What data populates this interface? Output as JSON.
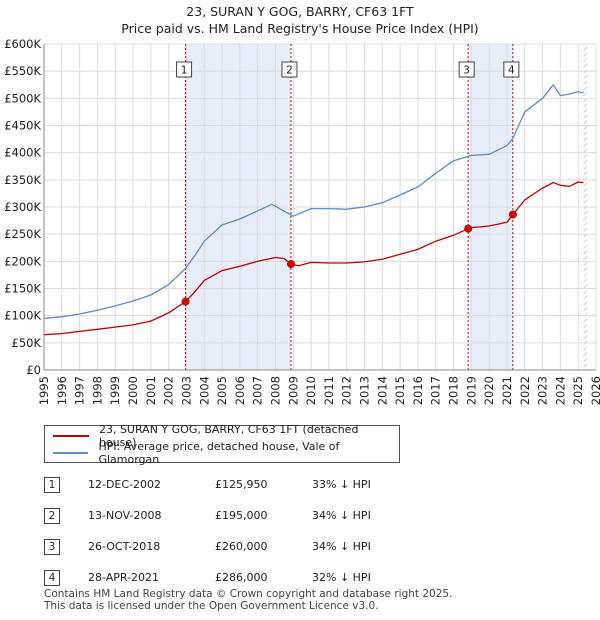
{
  "title": "23, SURAN Y GOG, BARRY, CF63 1FT",
  "subtitle": "Price paid vs. HM Land Registry's House Price Index (HPI)",
  "colors": {
    "property": "#c00000",
    "hpi": "#5b8ccc",
    "shade": "#e8eef9",
    "marker": "#cc0000"
  },
  "legend": {
    "property_label": "23, SURAN Y GOG, BARRY, CF63 1FT (detached house)",
    "hpi_label": "HPI: Average price, detached house, Vale of Glamorgan"
  },
  "sales": [
    {
      "num": "1",
      "date": "12-DEC-2002",
      "price": "£125,950",
      "hpi": "33% ↓ HPI"
    },
    {
      "num": "2",
      "date": "13-NOV-2008",
      "price": "£195,000",
      "hpi": "34% ↓ HPI"
    },
    {
      "num": "3",
      "date": "26-OCT-2018",
      "price": "£260,000",
      "hpi": "34% ↓ HPI"
    },
    {
      "num": "4",
      "date": "28-APR-2021",
      "price": "£286,000",
      "hpi": "32% ↓ HPI"
    }
  ],
  "footer": {
    "line1": "Contains HM Land Registry data © Crown copyright and database right 2025.",
    "line2": "This data is licensed under the Open Government Licence v3.0."
  },
  "chart_data": {
    "type": "line",
    "title": "23, SURAN Y GOG, BARRY, CF63 1FT",
    "subtitle": "Price paid vs. HM Land Registry's House Price Index (HPI)",
    "xlabel": "",
    "ylabel": "",
    "xlim": [
      1995,
      2026
    ],
    "ylim": [
      0,
      600000
    ],
    "y_ticks": [
      0,
      50000,
      100000,
      150000,
      200000,
      250000,
      300000,
      350000,
      400000,
      450000,
      500000,
      550000,
      600000
    ],
    "y_tick_labels": [
      "£0",
      "£50K",
      "£100K",
      "£150K",
      "£200K",
      "£250K",
      "£300K",
      "£350K",
      "£400K",
      "£450K",
      "£500K",
      "£550K",
      "£600K"
    ],
    "x_ticks": [
      1995,
      1996,
      1997,
      1998,
      1999,
      2000,
      2001,
      2002,
      2003,
      2004,
      2005,
      2006,
      2007,
      2008,
      2009,
      2010,
      2011,
      2012,
      2013,
      2014,
      2015,
      2016,
      2017,
      2018,
      2019,
      2020,
      2021,
      2022,
      2023,
      2024,
      2025,
      2026
    ],
    "grid": true,
    "shaded_ranges": [
      [
        2002.95,
        2008.87
      ],
      [
        2018.82,
        2021.33
      ]
    ],
    "data_end": 2025.3,
    "sale_markers": [
      {
        "label": "1",
        "x": 2002.95,
        "y": 125950
      },
      {
        "label": "2",
        "x": 2008.87,
        "y": 195000
      },
      {
        "label": "3",
        "x": 2018.82,
        "y": 260000
      },
      {
        "label": "4",
        "x": 2021.33,
        "y": 286000
      }
    ],
    "series": [
      {
        "name": "23, SURAN Y GOG, BARRY, CF63 1FT (detached house)",
        "x": [
          1995,
          1996,
          1997,
          1998,
          1999,
          2000,
          2001,
          2002,
          2002.95,
          2003.5,
          2004,
          2005,
          2006,
          2007,
          2008,
          2008.5,
          2008.87,
          2009.3,
          2010,
          2011,
          2012,
          2013,
          2014,
          2015,
          2016,
          2017,
          2018,
          2018.82,
          2019,
          2020,
          2021,
          2021.33,
          2022,
          2023,
          2023.6,
          2024,
          2024.5,
          2025,
          2025.3
        ],
        "y": [
          65000,
          67000,
          71000,
          75000,
          79000,
          83000,
          90000,
          105000,
          125950,
          145000,
          165000,
          183000,
          191000,
          200000,
          207000,
          205000,
          195000,
          192000,
          198000,
          197000,
          197000,
          199000,
          204000,
          213000,
          222000,
          237000,
          248000,
          260000,
          262000,
          265000,
          272000,
          286000,
          313000,
          335000,
          345000,
          340000,
          338000,
          346000,
          345000
        ]
      },
      {
        "name": "HPI: Average price, detached house, Vale of Glamorgan",
        "x": [
          1995,
          1996,
          1997,
          1998,
          1999,
          2000,
          2001,
          2002,
          2002.95,
          2003.5,
          2004,
          2005,
          2006,
          2007,
          2007.8,
          2008.5,
          2009,
          2010,
          2011,
          2012,
          2013,
          2014,
          2015,
          2016,
          2017,
          2018,
          2019,
          2020,
          2021,
          2021.33,
          2022,
          2023,
          2023.6,
          2024,
          2024.5,
          2025,
          2025.3
        ],
        "y": [
          95000,
          98000,
          103000,
          110000,
          118000,
          127000,
          138000,
          157000,
          187000,
          212000,
          237000,
          267000,
          278000,
          293000,
          305000,
          292000,
          283000,
          297000,
          297000,
          296000,
          300000,
          308000,
          322000,
          337000,
          362000,
          385000,
          395000,
          397000,
          413000,
          426000,
          475000,
          500000,
          525000,
          505000,
          508000,
          512000,
          510000
        ]
      }
    ]
  }
}
